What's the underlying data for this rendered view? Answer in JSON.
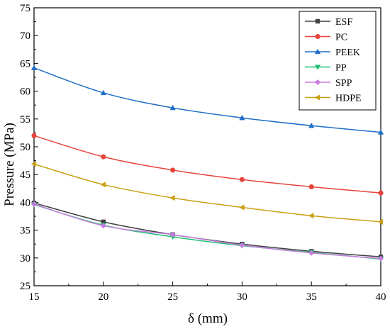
{
  "chart_data": {
    "type": "line",
    "xlabel": "δ (mm)",
    "ylabel": "Pressure (MPa)",
    "x": [
      15,
      20,
      25,
      30,
      35,
      40
    ],
    "xlim": [
      15,
      40
    ],
    "ylim": [
      25,
      75
    ],
    "xticks": [
      "15",
      "20",
      "25",
      "30",
      "35",
      "40"
    ],
    "yticks": [
      "25",
      "30",
      "35",
      "40",
      "45",
      "50",
      "55",
      "60",
      "65",
      "70",
      "75"
    ],
    "grid": false,
    "legend_position": "top-right",
    "series": [
      {
        "name": "ESF",
        "color": "#404040",
        "marker": "square",
        "values": [
          39.9,
          36.5,
          34.2,
          32.5,
          31.2,
          30.2
        ]
      },
      {
        "name": "PC",
        "color": "#e8423c",
        "marker": "circle",
        "values": [
          52.0,
          48.2,
          45.8,
          44.1,
          42.8,
          41.7
        ]
      },
      {
        "name": "PEEK",
        "color": "#1f6fc8",
        "marker": "triangle-up",
        "values": [
          64.2,
          59.7,
          57.0,
          55.2,
          53.8,
          52.6
        ]
      },
      {
        "name": "PP",
        "color": "#1fbf73",
        "marker": "triangle-down",
        "values": [
          39.6,
          35.9,
          33.8,
          32.2,
          31.0,
          29.8
        ]
      },
      {
        "name": "SPP",
        "color": "#c77ce0",
        "marker": "diamond",
        "values": [
          39.7,
          35.8,
          34.2,
          32.3,
          30.9,
          29.9
        ]
      },
      {
        "name": "HDPE",
        "color": "#c8a012",
        "marker": "triangle-left",
        "values": [
          46.9,
          43.2,
          40.8,
          39.1,
          37.6,
          36.5
        ]
      }
    ]
  }
}
